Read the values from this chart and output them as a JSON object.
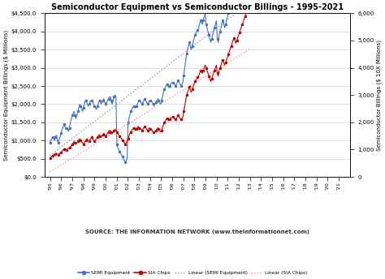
{
  "title": "Semiconductor Equipment vs Semiconductor Billings - 1995-2021",
  "years": [
    1995,
    1996,
    1997,
    1998,
    1999,
    2000,
    2001,
    2002,
    2003,
    2004,
    2005,
    2006,
    2007,
    2008,
    2009,
    2010,
    2011,
    2012,
    2013,
    2014,
    2015,
    2016,
    2017,
    2018,
    2019,
    2020,
    2021
  ],
  "semi_equipment": [
    950,
    1000,
    1050,
    1100,
    1050,
    1000,
    1100,
    1150,
    1000,
    950,
    1050,
    1100,
    1200,
    1300,
    1350,
    1450,
    1400,
    1300,
    1350,
    1300,
    1250,
    1350,
    1500,
    1600,
    1700,
    1750,
    1800,
    1700,
    1600,
    1700,
    1800,
    1900,
    2000,
    1950,
    1900,
    1800,
    1900,
    2000,
    2100,
    2100,
    2000,
    1950,
    2000,
    2050,
    2100,
    2100,
    2050,
    2000,
    1950,
    1900,
    1850,
    1950,
    2000,
    2100,
    2100,
    2000,
    2050,
    2100,
    2150,
    2050,
    2000,
    2050,
    2100,
    2150,
    2200,
    2200,
    2100,
    2000,
    2100,
    2200,
    2250,
    2200,
    900,
    800,
    750,
    700,
    650,
    600,
    550,
    500,
    450,
    400,
    450,
    500,
    1500,
    1600,
    1700,
    1800,
    1850,
    1900,
    1950,
    1900,
    1900,
    1950,
    2000,
    2050,
    2100,
    2100,
    2050,
    2000,
    2050,
    2100,
    2150,
    2100,
    2050,
    2000,
    2050,
    2100,
    2100,
    2100,
    2050,
    2000,
    1950,
    2000,
    2050,
    2100,
    2150,
    2100,
    2050,
    2000,
    2100,
    2200,
    2300,
    2400,
    2450,
    2500,
    2550,
    2500,
    2450,
    2500,
    2550,
    2600,
    2600,
    2600,
    2550,
    2500,
    2550,
    2600,
    2650,
    2600,
    2550,
    2500,
    2550,
    2600,
    2800,
    3000,
    3200,
    3400,
    3500,
    3600,
    3700,
    3600,
    3500,
    3600,
    3700,
    3800,
    3900,
    3950,
    4000,
    4050,
    4100,
    4200,
    4300,
    4250,
    4200,
    4300,
    4400,
    4500,
    4200,
    4100,
    4000,
    3900,
    3800,
    3700,
    3800,
    3900,
    4000,
    4100,
    4200,
    4300,
    3800,
    3700,
    3900,
    4000,
    4100,
    4200,
    4300,
    4200,
    4100,
    4200,
    4300,
    4400,
    4500,
    4600,
    4700,
    4800,
    4900,
    5000,
    5100,
    5000,
    4900,
    5000,
    5100,
    5200,
    5300,
    5400,
    5500,
    5600,
    5700,
    5800,
    5900,
    6000,
    6100,
    6200,
    6300,
    6500
  ],
  "sia_chips": [
    700,
    730,
    760,
    790,
    810,
    830,
    850,
    870,
    840,
    810,
    840,
    870,
    900,
    950,
    980,
    1020,
    1050,
    1020,
    990,
    1020,
    1050,
    1080,
    1100,
    1150,
    1200,
    1250,
    1300,
    1250,
    1200,
    1250,
    1300,
    1350,
    1400,
    1350,
    1300,
    1250,
    1200,
    1250,
    1300,
    1350,
    1400,
    1350,
    1300,
    1350,
    1400,
    1450,
    1400,
    1350,
    1300,
    1350,
    1400,
    1450,
    1500,
    1550,
    1500,
    1450,
    1500,
    1550,
    1600,
    1550,
    1500,
    1550,
    1600,
    1650,
    1700,
    1700,
    1650,
    1600,
    1650,
    1700,
    1750,
    1700,
    1650,
    1600,
    1550,
    1500,
    1450,
    1400,
    1350,
    1300,
    1250,
    1200,
    1250,
    1300,
    1400,
    1500,
    1600,
    1650,
    1700,
    1750,
    1800,
    1750,
    1700,
    1750,
    1800,
    1850,
    1800,
    1800,
    1750,
    1700,
    1750,
    1800,
    1850,
    1800,
    1750,
    1700,
    1750,
    1800,
    1750,
    1750,
    1700,
    1650,
    1600,
    1650,
    1700,
    1750,
    1800,
    1750,
    1700,
    1650,
    1700,
    1800,
    1900,
    2000,
    2050,
    2100,
    2150,
    2100,
    2050,
    2100,
    2150,
    2200,
    2200,
    2200,
    2150,
    2100,
    2150,
    2200,
    2250,
    2200,
    2150,
    2100,
    2150,
    2200,
    2400,
    2600,
    2800,
    3000,
    3100,
    3200,
    3300,
    3200,
    3100,
    3200,
    3300,
    3400,
    3500,
    3550,
    3600,
    3650,
    3700,
    3800,
    3900,
    3850,
    3800,
    3900,
    4000,
    4100,
    4000,
    3900,
    3800,
    3700,
    3600,
    3500,
    3600,
    3700,
    3800,
    3900,
    4000,
    4100,
    3800,
    3700,
    3900,
    4000,
    4100,
    4200,
    4300,
    4200,
    4100,
    4200,
    4300,
    4400,
    4500,
    4600,
    4700,
    4800,
    4900,
    5000,
    5100,
    5000,
    4900,
    5000,
    5100,
    5200,
    5300,
    5400,
    5500,
    5600,
    5700,
    5800,
    5900,
    6000,
    6100,
    6200,
    6300,
    6500
  ],
  "semi_equip_color": "#4472C4",
  "sia_chips_color": "#C00000",
  "linear_equip_color": "#8898CC",
  "linear_chips_color": "#FF9999",
  "ylabel_left": "Semiconductor Equipment Billings ($ Millions)",
  "ylabel_right": "Semiconductor Billings ($ 10X Millions)",
  "ylim_left": [
    0,
    4500
  ],
  "ylim_right": [
    0,
    6000
  ],
  "yticks_left_vals": [
    500,
    1000,
    1500,
    2000,
    2500,
    3000,
    3500,
    4000,
    4500
  ],
  "yticks_left_labels": [
    "$500.0",
    "$1,000.0",
    "$1,500.0",
    "$2,000.0",
    "$2,500.0",
    "$3,000.0",
    "$3,500.0",
    "$4,000.0",
    "$4,500.0"
  ],
  "yticks_right_vals": [
    1000,
    2000,
    3000,
    4000,
    5000,
    6000
  ],
  "yticks_right_labels": [
    "1,000",
    "2,000",
    "3,000",
    "4,000",
    "5,000",
    "6,000"
  ],
  "x_year_labels": [
    "'95",
    "'96",
    "'97",
    "'98",
    "'99",
    "'00",
    "'01",
    "'02",
    "'03",
    "'04",
    "'05",
    "'06",
    "'07",
    "'08",
    "'09",
    "'10",
    "'11",
    "'12",
    "'13",
    "'14",
    "'15",
    "'16",
    "'17",
    "'18",
    "'19",
    "'20",
    "'21"
  ],
  "source_text": "SOURCE: THE INFORMATION NETWORK (www.theinformationnet.com)",
  "background_color": "#FFFFFF",
  "grid_color": "#D0D0D0",
  "n_years": 27,
  "start_year": 1995
}
